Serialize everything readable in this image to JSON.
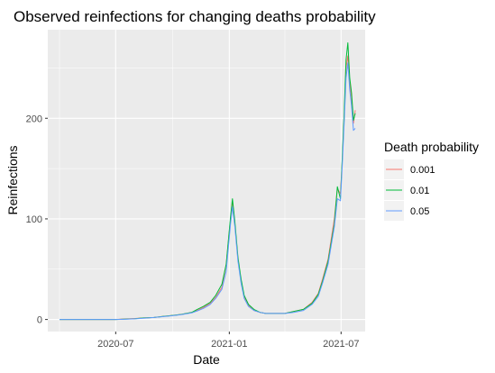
{
  "chart_data": {
    "type": "line",
    "title": "Observed reinfections for changing deaths probability",
    "xlabel": "Date",
    "ylabel": "Reinfections",
    "x_tick_labels": [
      "2020-07",
      "2021-01",
      "2021-07"
    ],
    "y_ticks": [
      0,
      100,
      200
    ],
    "ylim": [
      -12,
      288
    ],
    "xlim": [
      "2020-03-13",
      "2021-08-09"
    ],
    "grid": true,
    "legend": {
      "title": "Death probability",
      "position": "right"
    },
    "x": [
      "2020-04-01",
      "2020-05-01",
      "2020-06-01",
      "2020-07-01",
      "2020-07-15",
      "2020-08-01",
      "2020-08-15",
      "2020-09-01",
      "2020-09-15",
      "2020-10-01",
      "2020-10-15",
      "2020-11-01",
      "2020-11-10",
      "2020-11-20",
      "2020-12-01",
      "2020-12-10",
      "2020-12-20",
      "2020-12-27",
      "2021-01-03",
      "2021-01-06",
      "2021-01-10",
      "2021-01-15",
      "2021-01-20",
      "2021-01-25",
      "2021-02-01",
      "2021-02-10",
      "2021-02-20",
      "2021-03-01",
      "2021-03-15",
      "2021-04-01",
      "2021-04-15",
      "2021-05-01",
      "2021-05-15",
      "2021-05-25",
      "2021-06-01",
      "2021-06-10",
      "2021-06-20",
      "2021-06-25",
      "2021-06-30",
      "2021-07-03",
      "2021-07-06",
      "2021-07-09",
      "2021-07-12",
      "2021-07-15",
      "2021-07-18",
      "2021-07-21",
      "2021-07-24"
    ],
    "series": [
      {
        "name": "0.001",
        "color": "#F8766D",
        "values": [
          0,
          0,
          0,
          0,
          0.5,
          1,
          1.5,
          2,
          3,
          4,
          5,
          7,
          9,
          12,
          16,
          22,
          32,
          55,
          100,
          118,
          95,
          60,
          38,
          22,
          14,
          9,
          7,
          6,
          6,
          6,
          8,
          10,
          17,
          26,
          40,
          60,
          100,
          130,
          125,
          160,
          200,
          250,
          262,
          235,
          220,
          195,
          208
        ]
      },
      {
        "name": "0.01",
        "color": "#00BA38",
        "values": [
          0,
          0,
          0,
          0,
          0.3,
          0.8,
          1.5,
          2,
          3,
          4,
          5,
          7,
          10,
          13,
          17,
          24,
          35,
          55,
          102,
          120,
          97,
          62,
          40,
          24,
          15,
          10,
          7,
          6,
          6,
          6,
          8,
          10,
          16,
          25,
          38,
          58,
          95,
          132,
          120,
          163,
          205,
          258,
          275,
          240,
          225,
          198,
          205
        ]
      },
      {
        "name": "0.05",
        "color": "#619CFF",
        "values": [
          0,
          0,
          0,
          0,
          0.2,
          0.6,
          1.2,
          2,
          2.8,
          3.8,
          4.8,
          6.5,
          8.5,
          11,
          15,
          21,
          30,
          48,
          95,
          112,
          92,
          58,
          36,
          21,
          13,
          9,
          7,
          6,
          6,
          6,
          7,
          9,
          15,
          23,
          36,
          55,
          92,
          120,
          118,
          155,
          195,
          240,
          255,
          228,
          212,
          188,
          190
        ]
      }
    ]
  }
}
